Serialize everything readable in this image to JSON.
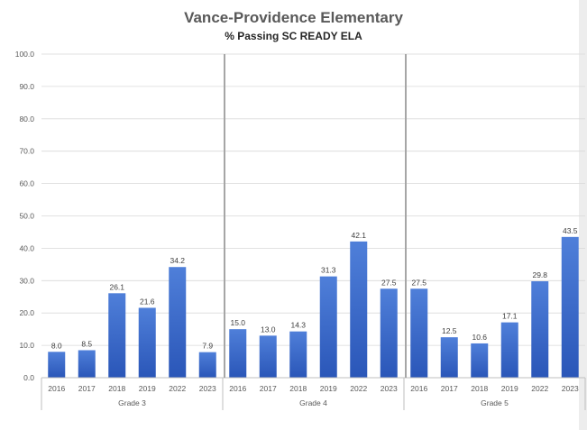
{
  "chart_data": {
    "type": "bar",
    "title": "Vance-Providence Elementary",
    "subtitle": "% Passing SC READY ELA",
    "xlabel": "",
    "ylabel": "",
    "ylim": [
      0,
      100
    ],
    "yticks": [
      "0.0",
      "10.0",
      "20.0",
      "30.0",
      "40.0",
      "50.0",
      "60.0",
      "70.0",
      "80.0",
      "90.0",
      "100.0"
    ],
    "grid": true,
    "bar_color": "#3366cc",
    "groups": [
      {
        "name": "Grade 3",
        "categories": [
          "2016",
          "2017",
          "2018",
          "2019",
          "2022",
          "2023"
        ],
        "values": [
          8.0,
          8.5,
          26.1,
          21.6,
          34.2,
          7.9
        ],
        "labels": [
          "8.0",
          "8.5",
          "26.1",
          "21.6",
          "34.2",
          "7.9"
        ]
      },
      {
        "name": "Grade 4",
        "categories": [
          "2016",
          "2017",
          "2018",
          "2019",
          "2022",
          "2023"
        ],
        "values": [
          15.0,
          13.0,
          14.3,
          31.3,
          42.1,
          27.5
        ],
        "labels": [
          "15.0",
          "13.0",
          "14.3",
          "31.3",
          "42.1",
          "27.5"
        ]
      },
      {
        "name": "Grade 5",
        "categories": [
          "2016",
          "2017",
          "2018",
          "2019",
          "2022",
          "2023"
        ],
        "values": [
          27.5,
          12.5,
          10.6,
          17.1,
          29.8,
          43.5
        ],
        "labels": [
          "27.5",
          "12.5",
          "10.6",
          "17.1",
          "29.8",
          "43.5"
        ]
      }
    ]
  }
}
